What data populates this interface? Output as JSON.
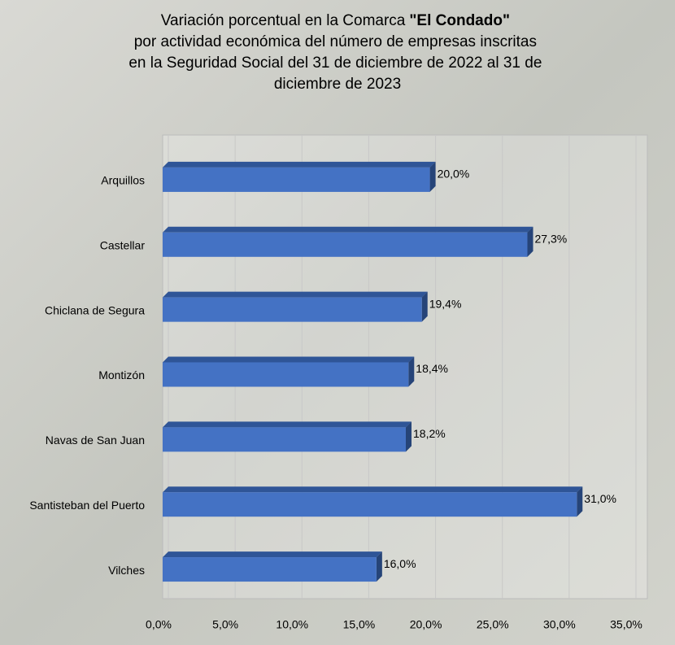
{
  "chart_data": {
    "type": "bar",
    "orientation": "horizontal",
    "title": [
      "Variación porcentual en la Comarca",
      "\"El Condado\"",
      "por actividad económica del número de empresas inscritas",
      "en la Seguridad Social del 31 de diciembre de 2022 al 31 de",
      "diciembre de 2023"
    ],
    "categories": [
      "Arquillos",
      "Castellar",
      "Chiclana de Segura",
      "Montizón",
      "Navas de San Juan",
      "Santisteban del Puerto",
      "Vilches"
    ],
    "values": [
      20.0,
      27.3,
      19.4,
      18.4,
      18.2,
      31.0,
      16.0
    ],
    "value_labels": [
      "20,0%",
      "27,3%",
      "19,4%",
      "18,4%",
      "18,2%",
      "31,0%",
      "16,0%"
    ],
    "color": "#4472c4",
    "xlim": [
      0,
      35
    ],
    "xticks": [
      {
        "value": 0,
        "label": "0,0%"
      },
      {
        "value": 5,
        "label": "5,0%"
      },
      {
        "value": 10,
        "label": "10,0%"
      },
      {
        "value": 15,
        "label": "15,0%"
      },
      {
        "value": 20,
        "label": "20,0%"
      },
      {
        "value": 25,
        "label": "25,0%"
      },
      {
        "value": 30,
        "label": "30,0%"
      },
      {
        "value": 35,
        "label": "35,0%"
      }
    ],
    "grid": true
  }
}
